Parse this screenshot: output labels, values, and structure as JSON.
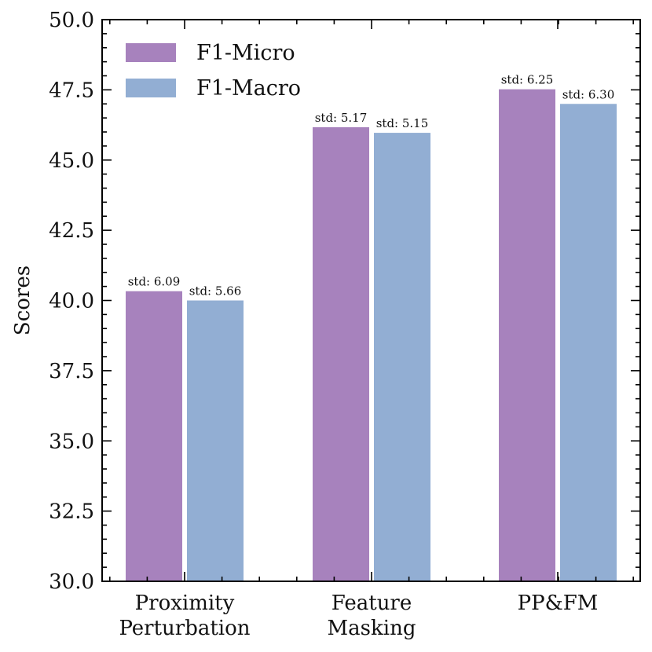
{
  "chart_data": {
    "type": "bar",
    "title": "",
    "xlabel": "",
    "ylabel": "Scores",
    "ylim": [
      30.0,
      50.0
    ],
    "yticks": [
      "30.0",
      "32.5",
      "35.0",
      "37.5",
      "40.0",
      "42.5",
      "45.0",
      "47.5",
      "50.0"
    ],
    "categories": [
      [
        "Proximity",
        "Perturbation"
      ],
      [
        "Feature",
        "Masking"
      ],
      [
        "PP&FM"
      ]
    ],
    "legend_position": "top-left",
    "series": [
      {
        "name": "F1-Micro",
        "color": "#a782bd",
        "values": [
          40.33,
          46.17,
          47.52
        ],
        "std_labels": [
          "std: 6.09",
          "std: 5.17",
          "std: 6.25"
        ]
      },
      {
        "name": "F1-Macro",
        "color": "#92aed3",
        "values": [
          40.0,
          45.97,
          47.0
        ],
        "std_labels": [
          "std: 5.66",
          "std: 5.15",
          "std: 6.30"
        ]
      }
    ]
  }
}
